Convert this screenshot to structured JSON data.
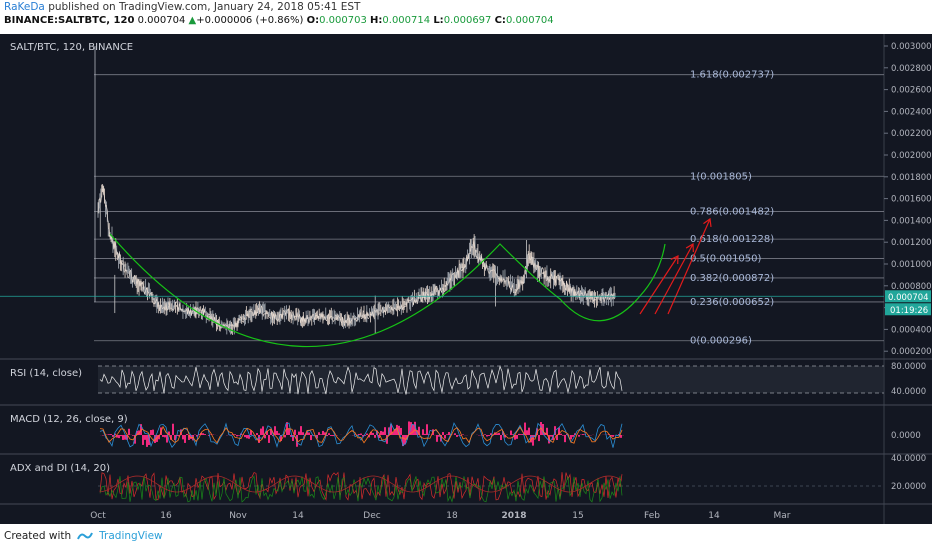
{
  "header": {
    "author": "RaKeDa",
    "published": "published on TradingView.com, January 24, 2018 05:41 EST",
    "symbol": "BINANCE:SALTBTC, 120",
    "price": "0.000704",
    "change_arrow": "▲",
    "change": "+0.000006 (+0.86%)",
    "o_label": "O:",
    "o_val": "0.000703",
    "h_label": "H:",
    "h_val": "0.000714",
    "l_label": "L:",
    "l_val": "0.000697",
    "c_label": "C:",
    "c_val": "0.000704"
  },
  "footer": {
    "created_with": "Created with",
    "brand": "TradingView"
  },
  "colors": {
    "background": "#131722",
    "fib": "#787b86",
    "arc": "#16c216",
    "arrow": "#e21b1b",
    "price_tag": "#21a69a",
    "macd_hist": "#f0287d",
    "macd_line": "#2b8fd6",
    "signal_line": "#ff7a1f",
    "adx": "#d72d2d",
    "plus_di": "#1a8a1a"
  },
  "chart_data": [
    {
      "type": "candlestick",
      "title": "SALT/BTC, 120, BINANCE",
      "ylim": [
        0.0002,
        0.0031
      ],
      "y_ticks": [
        "0.003000",
        "0.002800",
        "0.002600",
        "0.002400",
        "0.002200",
        "0.002000",
        "0.001800",
        "0.001600",
        "0.001400",
        "0.001200",
        "0.001000",
        "0.000800",
        "0.000600",
        "0.000400",
        "0.000200"
      ],
      "current_price": "0.000704",
      "countdown": "01:19:26",
      "x_ticks": [
        "Oct",
        "16",
        "Nov",
        "14",
        "Dec",
        "18",
        "2018",
        "15",
        "Feb",
        "14",
        "Mar"
      ],
      "close_path": [
        [
          0,
          0.0015
        ],
        [
          2,
          0.0017
        ],
        [
          4,
          0.0013
        ],
        [
          7,
          0.00108
        ],
        [
          10,
          0.00095
        ],
        [
          14,
          0.00082
        ],
        [
          18,
          0.00075
        ],
        [
          22,
          0.0006
        ],
        [
          27,
          0.00062
        ],
        [
          32,
          0.00056
        ],
        [
          37,
          0.00058
        ],
        [
          43,
          0.00045
        ],
        [
          48,
          0.00042
        ],
        [
          53,
          0.00053
        ],
        [
          58,
          0.00058
        ],
        [
          63,
          0.00051
        ],
        [
          68,
          0.00055
        ],
        [
          73,
          0.00049
        ],
        [
          78,
          0.00051
        ],
        [
          83,
          0.00052
        ],
        [
          88,
          0.00047
        ],
        [
          93,
          0.00052
        ],
        [
          98,
          0.00055
        ],
        [
          103,
          0.00058
        ],
        [
          108,
          0.00061
        ],
        [
          113,
          0.00067
        ],
        [
          118,
          0.00072
        ],
        [
          123,
          0.00077
        ],
        [
          127,
          0.00088
        ],
        [
          131,
          0.001
        ],
        [
          134,
          0.00118
        ],
        [
          137,
          0.00102
        ],
        [
          141,
          0.00092
        ],
        [
          145,
          0.00086
        ],
        [
          149,
          0.00077
        ],
        [
          152,
          0.00085
        ],
        [
          154,
          0.00108
        ],
        [
          157,
          0.00094
        ],
        [
          161,
          0.00088
        ],
        [
          165,
          0.00086
        ],
        [
          169,
          0.00075
        ],
        [
          173,
          0.00072
        ],
        [
          176,
          0.0007
        ],
        [
          179,
          0.00068
        ],
        [
          182,
          0.0007
        ],
        [
          185,
          0.000704
        ]
      ],
      "fibonacci": [
        {
          "ratio": "1.618",
          "price": 0.002737,
          "label": "1.618(0.002737)"
        },
        {
          "ratio": "1",
          "price": 0.001805,
          "label": "1(0.001805)"
        },
        {
          "ratio": "0.786",
          "price": 0.001482,
          "label": "0.786(0.001482)"
        },
        {
          "ratio": "0.618",
          "price": 0.001228,
          "label": "0.618(0.001228)"
        },
        {
          "ratio": "0.5",
          "price": 0.00105,
          "label": "0.5(0.001050)"
        },
        {
          "ratio": "0.382",
          "price": 0.000872,
          "label": "0.382(0.000872)"
        },
        {
          "ratio": "0.236",
          "price": 0.000652,
          "label": "0.236(0.000652)"
        },
        {
          "ratio": "0",
          "price": 0.000296,
          "label": "0(0.000296)"
        }
      ]
    },
    {
      "type": "line",
      "title": "RSI (14, close)",
      "y_ticks": [
        "80.0000",
        "40.0000"
      ],
      "levels": [
        70,
        30
      ]
    },
    {
      "type": "bar",
      "title": "MACD (12, 26, close, 9)",
      "y_ticks": [
        "0.0000"
      ]
    },
    {
      "type": "line",
      "title": "ADX and DI (14, 20)",
      "y_ticks": [
        "40.0000",
        "20.0000"
      ]
    }
  ]
}
